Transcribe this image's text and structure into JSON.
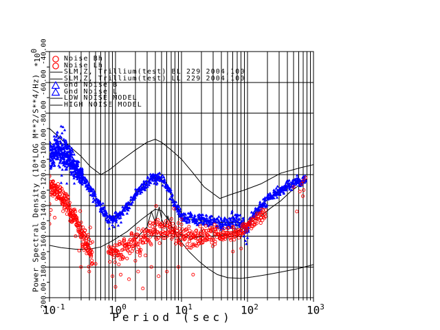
{
  "window": {
    "background": "#ffffff"
  },
  "colors": {
    "red_series": "#ff0000",
    "blue_series": "#0000ff",
    "model_line": "#000000"
  },
  "axes": {
    "x": {
      "label": "Period (sec)",
      "scale": "log",
      "tick_base": "10",
      "tick_exponents": [
        "-1",
        "0",
        "1",
        "2",
        "3"
      ]
    },
    "y": {
      "label": "Power Spectral Density (10*LOG M**2/S**4/Hz)",
      "multiplier_base": "*10",
      "multiplier_exp": "0",
      "tick_labels": [
        "-40.00",
        "-60.00",
        "-80.00",
        "-100.00",
        "-120.00",
        "-140.00",
        "-160.00",
        "-180.00",
        "-200.00"
      ]
    }
  },
  "legend": {
    "items": [
      {
        "symbol": "circle",
        "color": "#ff0000",
        "label": "Noise Bh"
      },
      {
        "symbol": "circle",
        "color": "#ff0000",
        "label": "Noise Lh"
      },
      {
        "symbol": "line",
        "color": "#000000",
        "label": "SLM,Z, Trillium(test) BL 229 2004,100"
      },
      {
        "symbol": "line",
        "color": "#000000",
        "label": "SLM,Z, Trillium(test) LL 229 2004,100"
      },
      {
        "symbol": "triangle",
        "color": "#0000ff",
        "label": "Gnd Noise B"
      },
      {
        "symbol": "triangle",
        "color": "#0000ff",
        "label": "Gnd Noise L"
      },
      {
        "symbol": "line",
        "color": "#000000",
        "label": "LOW NOISE MODEL"
      },
      {
        "symbol": "line",
        "color": "#000000",
        "label": "HIGH NOISE MODEL"
      }
    ]
  },
  "chart_data": {
    "type": "scatter",
    "title": "",
    "xlabel": "Period (sec)",
    "ylabel": "Power Spectral Density (10*LOG M**2/S**4/Hz)",
    "x_scale": "log",
    "xlim": [
      0.1,
      1000
    ],
    "ylim": [
      -200,
      -40
    ],
    "x_decades": [
      -1,
      0,
      1,
      2,
      3
    ],
    "y_major_step": 20,
    "y_minor_step": 10,
    "grid": true,
    "series": [
      {
        "name": "HIGH NOISE MODEL",
        "kind": "line",
        "color": "#000000",
        "points": [
          [
            0.1,
            -90
          ],
          [
            0.15,
            -97
          ],
          [
            0.22,
            -103
          ],
          [
            0.3,
            -108
          ],
          [
            0.42,
            -115
          ],
          [
            0.6,
            -120
          ],
          [
            0.8,
            -117
          ],
          [
            1.2,
            -111
          ],
          [
            2,
            -104
          ],
          [
            3,
            -99
          ],
          [
            4,
            -97
          ],
          [
            5,
            -99
          ],
          [
            7,
            -104
          ],
          [
            10,
            -110
          ],
          [
            15,
            -119
          ],
          [
            22,
            -128
          ],
          [
            38,
            -135.5
          ],
          [
            55,
            -133
          ],
          [
            90,
            -130
          ],
          [
            160,
            -126
          ],
          [
            320,
            -119
          ],
          [
            640,
            -115.5
          ],
          [
            1000,
            -113.5
          ]
        ]
      },
      {
        "name": "LOW NOISE MODEL",
        "kind": "line",
        "color": "#000000",
        "points": [
          [
            0.1,
            -166
          ],
          [
            0.15,
            -167.5
          ],
          [
            0.25,
            -168.5
          ],
          [
            0.4,
            -168.5
          ],
          [
            0.6,
            -167
          ],
          [
            0.9,
            -163
          ],
          [
            1.5,
            -157
          ],
          [
            2.5,
            -149
          ],
          [
            4,
            -142.5
          ],
          [
            5,
            -143.5
          ],
          [
            6.5,
            -150
          ],
          [
            8,
            -158
          ],
          [
            10,
            -164
          ],
          [
            13,
            -170
          ],
          [
            18,
            -176
          ],
          [
            25,
            -181
          ],
          [
            35,
            -185
          ],
          [
            50,
            -187
          ],
          [
            80,
            -187.5
          ],
          [
            120,
            -186.5
          ],
          [
            200,
            -185
          ],
          [
            350,
            -183
          ],
          [
            600,
            -181
          ],
          [
            1000,
            -178.5
          ]
        ]
      },
      {
        "name": "SLM,Z, Trillium(test) BL 229 2004,100",
        "kind": "line",
        "color": "#000000",
        "points": [
          [
            0.9,
            -149
          ],
          [
            1.3,
            -144
          ],
          [
            2.2,
            -131
          ],
          [
            3.5,
            -122
          ],
          [
            5,
            -123
          ],
          [
            6.5,
            -130
          ],
          [
            8,
            -140
          ],
          [
            12,
            -149
          ],
          [
            16,
            -149
          ],
          [
            25,
            -151
          ],
          [
            50,
            -151
          ],
          [
            80,
            -151
          ],
          [
            95,
            -156
          ],
          [
            130,
            -145
          ],
          [
            200,
            -136
          ],
          [
            320,
            -129.5
          ],
          [
            500,
            -125.5
          ],
          [
            800,
            -123
          ]
        ]
      },
      {
        "name": "SLM,Z, Trillium(test) LL 229 2004,100",
        "kind": "line",
        "color": "#000000",
        "points": [
          [
            2,
            -162
          ],
          [
            3,
            -154
          ],
          [
            3.5,
            -144
          ],
          [
            4,
            -151
          ],
          [
            4.6,
            -141
          ],
          [
            5,
            -149
          ],
          [
            5.6,
            -154
          ],
          [
            6.2,
            -147
          ],
          [
            7,
            -153
          ],
          [
            8,
            -157
          ],
          [
            10,
            -159
          ],
          [
            14,
            -162
          ],
          [
            20,
            -160
          ],
          [
            30,
            -160
          ],
          [
            50,
            -159
          ],
          [
            70,
            -157
          ],
          [
            95,
            -154
          ],
          [
            120,
            -150
          ],
          [
            160,
            -147
          ],
          [
            220,
            -142
          ],
          [
            320,
            -137
          ],
          [
            450,
            -131
          ],
          [
            600,
            -127
          ],
          [
            800,
            -124
          ]
        ]
      },
      {
        "name": "Gnd Noise B",
        "kind": "scatter",
        "marker": "triangle",
        "color": "#0000ff",
        "segments": [
          {
            "t": [
              0.1,
              0.32
            ],
            "n": 450,
            "center": [
              [
                0.1,
                -108
              ],
              [
                0.13,
                -103
              ],
              [
                0.18,
                -108
              ],
              [
                0.25,
                -116
              ],
              [
                0.32,
                -122
              ]
            ],
            "spread": [
              [
                0.1,
                9
              ],
              [
                0.15,
                11
              ],
              [
                0.2,
                9
              ],
              [
                0.32,
                6
              ]
            ]
          },
          {
            "t": [
              0.32,
              770
            ],
            "n": 900,
            "center": [
              [
                0.32,
                -122
              ],
              [
                0.4,
                -129
              ],
              [
                0.55,
                -138
              ],
              [
                0.7,
                -146
              ],
              [
                0.85,
                -149.5
              ],
              [
                1,
                -148
              ],
              [
                1.3,
                -144
              ],
              [
                1.7,
                -138
              ],
              [
                2.2,
                -131
              ],
              [
                2.8,
                -126
              ],
              [
                3.5,
                -122.5
              ],
              [
                4.5,
                -122
              ],
              [
                5.5,
                -124
              ],
              [
                6.5,
                -130
              ],
              [
                8,
                -140
              ],
              [
                10,
                -146
              ],
              [
                12,
                -149
              ],
              [
                14,
                -146
              ],
              [
                16,
                -150
              ],
              [
                20,
                -148
              ],
              [
                25,
                -151
              ],
              [
                30,
                -150
              ],
              [
                40,
                -152
              ],
              [
                50,
                -151
              ],
              [
                60,
                -150
              ],
              [
                80,
                -151
              ],
              [
                95,
                -155
              ],
              [
                110,
                -149
              ],
              [
                130,
                -145
              ],
              [
                160,
                -141
              ],
              [
                200,
                -136.5
              ],
              [
                250,
                -133
              ],
              [
                320,
                -130
              ],
              [
                400,
                -127.5
              ],
              [
                500,
                -126
              ],
              [
                650,
                -124.5
              ],
              [
                770,
                -123
              ]
            ],
            "spread": [
              [
                0.32,
                4
              ],
              [
                1,
                3.5
              ],
              [
                10,
                3.5
              ],
              [
                50,
                4
              ],
              [
                90,
                6
              ],
              [
                120,
                4
              ],
              [
                770,
                3
              ]
            ]
          }
        ],
        "outliers": [
          [
            0.145,
            -95
          ],
          [
            0.15,
            -88.5
          ],
          [
            0.155,
            -93
          ],
          [
            0.16,
            -89
          ],
          [
            0.165,
            -97
          ],
          [
            0.17,
            -91
          ],
          [
            0.18,
            -99
          ],
          [
            0.13,
            -94
          ],
          [
            0.2,
            -101
          ],
          [
            0.22,
            -104
          ],
          [
            88,
            -160
          ],
          [
            93,
            -163
          ],
          [
            96,
            -165
          ],
          [
            100,
            -161
          ],
          [
            104,
            -157
          ],
          [
            0.95,
            -154
          ],
          [
            1.1,
            -153
          ]
        ]
      },
      {
        "name": "Noise Bh",
        "kind": "scatter",
        "marker": "circle",
        "color": "#ff0000",
        "segments": [
          {
            "t": [
              0.1,
              0.45
            ],
            "n": 240,
            "center": [
              [
                0.1,
                -127
              ],
              [
                0.13,
                -131
              ],
              [
                0.17,
                -137
              ],
              [
                0.22,
                -146
              ],
              [
                0.28,
                -155
              ],
              [
                0.35,
                -164
              ],
              [
                0.45,
                -172
              ]
            ],
            "spread": [
              [
                0.1,
                5
              ],
              [
                0.2,
                6
              ],
              [
                0.3,
                8
              ],
              [
                0.45,
                9
              ]
            ]
          },
          {
            "t": [
              0.78,
              35
            ],
            "n": 330,
            "center": [
              [
                0.78,
                -172
              ],
              [
                0.9,
                -168
              ],
              [
                1.1,
                -170
              ],
              [
                1.4,
                -167
              ],
              [
                1.8,
                -163
              ],
              [
                2.3,
                -166
              ],
              [
                3,
                -160
              ],
              [
                4,
                -157
              ],
              [
                5,
                -155.5
              ],
              [
                6.5,
                -156
              ],
              [
                8,
                -157
              ],
              [
                10,
                -159
              ],
              [
                13,
                -162
              ],
              [
                17,
                -160
              ],
              [
                22,
                -161
              ],
              [
                28,
                -160
              ],
              [
                35,
                -160
              ]
            ],
            "spread": [
              [
                0.78,
                8
              ],
              [
                3,
                8
              ],
              [
                8,
                8
              ],
              [
                35,
                7
              ]
            ]
          },
          {
            "t": [
              35,
              190
            ],
            "n": 125,
            "center": [
              [
                35,
                -160
              ],
              [
                60,
                -158
              ],
              [
                90,
                -156
              ],
              [
                120,
                -151
              ],
              [
                160,
                -147
              ],
              [
                190,
                -145
              ]
            ],
            "spread": [
              [
                35,
                5
              ],
              [
                190,
                4
              ]
            ]
          }
        ],
        "outliers": [
          [
            0.1,
            -121
          ],
          [
            0.1,
            -127
          ],
          [
            0.1,
            -133
          ],
          [
            0.1,
            -139
          ],
          [
            0.1,
            -146
          ],
          [
            0.1,
            -152
          ],
          [
            0.105,
            -143
          ],
          [
            0.12,
            -148
          ],
          [
            0.3,
            -180
          ],
          [
            0.4,
            -183
          ],
          [
            0.5,
            -178
          ],
          [
            0.9,
            -186
          ],
          [
            1,
            -193
          ],
          [
            1.2,
            -185
          ],
          [
            1.6,
            -188
          ],
          [
            2,
            -176
          ],
          [
            2.2,
            -183
          ],
          [
            2.6,
            -194
          ],
          [
            3.5,
            -180
          ],
          [
            4.5,
            -186
          ],
          [
            6,
            -183
          ],
          [
            9,
            -180
          ],
          [
            15,
            -185
          ],
          [
            60,
            -170
          ],
          [
            80,
            -168
          ],
          [
            500,
            -128
          ],
          [
            560,
            -144
          ],
          [
            620,
            -131
          ],
          [
            660,
            -126
          ],
          [
            690,
            -134
          ],
          [
            700,
            -124
          ],
          [
            710,
            -130
          ],
          [
            760,
            -122
          ]
        ]
      }
    ]
  }
}
